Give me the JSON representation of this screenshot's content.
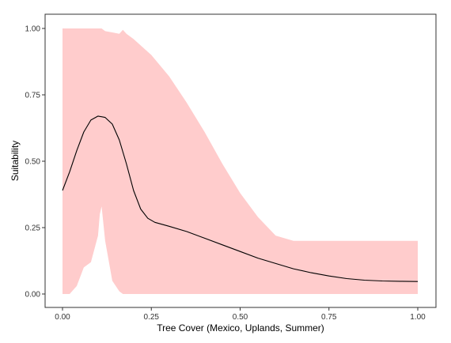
{
  "chart_data": {
    "type": "area",
    "xlabel": "Tree Cover (Mexico, Uplands, Summer)",
    "ylabel": "Suitability",
    "xlim": [
      0,
      1
    ],
    "ylim": [
      0,
      1
    ],
    "x_ticks": [
      {
        "value": 0.0,
        "label": "0.00"
      },
      {
        "value": 0.25,
        "label": "0.25"
      },
      {
        "value": 0.5,
        "label": "0.50"
      },
      {
        "value": 0.75,
        "label": "0.75"
      },
      {
        "value": 1.0,
        "label": "1.00"
      }
    ],
    "y_ticks": [
      {
        "value": 0.0,
        "label": "0.00"
      },
      {
        "value": 0.25,
        "label": "0.25"
      },
      {
        "value": 0.5,
        "label": "0.50"
      },
      {
        "value": 0.75,
        "label": "0.75"
      },
      {
        "value": 1.0,
        "label": "1.00"
      }
    ],
    "grid": false,
    "colors": {
      "band": "#ffcccc",
      "line": "#000000",
      "frame": "#333333"
    },
    "band": {
      "x": [
        0.0,
        0.02,
        0.04,
        0.06,
        0.08,
        0.1,
        0.105,
        0.11,
        0.12,
        0.14,
        0.16,
        0.17,
        0.18,
        0.2,
        0.25,
        0.3,
        0.35,
        0.4,
        0.45,
        0.5,
        0.55,
        0.6,
        0.65,
        0.66,
        0.7,
        0.8,
        0.9,
        1.0
      ],
      "upper": [
        1.0,
        1.0,
        1.0,
        1.0,
        1.0,
        1.0,
        1.0,
        1.0,
        0.99,
        0.985,
        0.98,
        0.995,
        0.98,
        0.96,
        0.9,
        0.82,
        0.72,
        0.61,
        0.49,
        0.38,
        0.29,
        0.22,
        0.2,
        0.2,
        0.2,
        0.2,
        0.2,
        0.2
      ],
      "lower": [
        0.0,
        0.0,
        0.03,
        0.1,
        0.12,
        0.22,
        0.3,
        0.33,
        0.2,
        0.05,
        0.01,
        0.0,
        0.0,
        0.0,
        0.0,
        0.0,
        0.0,
        0.0,
        0.0,
        0.0,
        0.0,
        0.0,
        0.0,
        0.0,
        0.0,
        0.0,
        0.0,
        0.0
      ]
    },
    "series": [
      {
        "x": [
          0.0,
          0.02,
          0.04,
          0.06,
          0.08,
          0.1,
          0.12,
          0.14,
          0.16,
          0.18,
          0.2,
          0.22,
          0.24,
          0.26,
          0.3,
          0.35,
          0.4,
          0.45,
          0.5,
          0.55,
          0.6,
          0.65,
          0.7,
          0.75,
          0.8,
          0.85,
          0.9,
          0.95,
          1.0
        ],
        "values": [
          0.39,
          0.46,
          0.54,
          0.61,
          0.655,
          0.67,
          0.665,
          0.64,
          0.58,
          0.49,
          0.39,
          0.32,
          0.285,
          0.27,
          0.255,
          0.235,
          0.21,
          0.185,
          0.16,
          0.135,
          0.115,
          0.095,
          0.08,
          0.068,
          0.058,
          0.052,
          0.049,
          0.048,
          0.047
        ]
      }
    ]
  }
}
